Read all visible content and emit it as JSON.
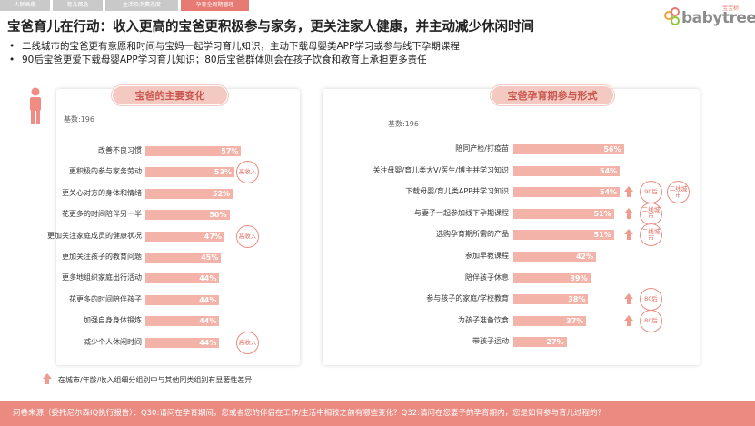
{
  "tabs": [
    "人群画像",
    "育儿观念",
    "生活及消费态度",
    "孕育全周期管理"
  ],
  "active_tab": 3,
  "title": "宝爸育儿在行动：收入更高的宝爸更积极参与家务，更关注家人健康，并主动减少休闲时间",
  "bullets": [
    "二线城市的宝爸更有意愿和时间与宝妈一起学习育儿知识，主动下载母婴类APP学习或参与线下孕期课程",
    "90后宝爸更爱下载母婴APP学习育儿知识；80后宝爸群体则会在孩子饮食和教育上承担更多责任"
  ],
  "bullet_mark": "•",
  "logo": {
    "text": "babytree",
    "cn": "宝宝树"
  },
  "colors": {
    "bar": "#f3b3a8",
    "accent": "#e77a72",
    "footer": "#eb8a80",
    "badge": "#e06b60",
    "arrow": "#f09a90"
  },
  "chart_data": [
    {
      "type": "bar",
      "title": "宝爸的主要变化",
      "base": "基数:196",
      "categories": [
        "改善不良习惯",
        "更积极的参与家务劳动",
        "更关心对方的身体和情绪",
        "花更多的时间陪伴另一半",
        "更加关注家庭成员的健康状况",
        "更加关注孩子的教育问题",
        "更多地组织家庭出行活动",
        "花更多的时间陪伴孩子",
        "加强自身身体锻炼",
        "减少个人休闲时间"
      ],
      "values": [
        57,
        53,
        52,
        50,
        47,
        45,
        44,
        44,
        44,
        44
      ],
      "value_labels": [
        "57%",
        "53%",
        "52%",
        "50%",
        "47%",
        "45%",
        "44%",
        "44%",
        "44%",
        "44%"
      ],
      "annotations": [
        {
          "index": 1,
          "arrow": true,
          "badges": [
            "高收入"
          ]
        },
        {
          "index": 4,
          "arrow": true,
          "badges": [
            "高收入"
          ]
        },
        {
          "index": 9,
          "arrow": true,
          "badges": [
            "高收入"
          ]
        }
      ]
    },
    {
      "type": "bar",
      "title": "宝爸孕育期参与形式",
      "base": "基数:196",
      "categories": [
        "陪同产检/打疫苗",
        "关注母婴/育儿类大V/医生/博主并学习知识",
        "下载母婴/育儿类APP并学习知识",
        "与妻子一起参加线下孕期课程",
        "选购孕育期所需的产品",
        "参加早教课程",
        "陪伴孩子休息",
        "参与孩子的家庭/学校教育",
        "为孩子准备饮食",
        "带孩子运动"
      ],
      "values": [
        56,
        54,
        54,
        51,
        51,
        42,
        39,
        38,
        37,
        27
      ],
      "value_labels": [
        "56%",
        "54%",
        "54%",
        "51%",
        "51%",
        "42%",
        "39%",
        "38%",
        "37%",
        "27%"
      ],
      "annotations": [
        {
          "index": 2,
          "arrow": true,
          "badges": [
            "90后",
            "二线城市"
          ]
        },
        {
          "index": 3,
          "arrow": true,
          "badges": [
            "二线城市"
          ]
        },
        {
          "index": 4,
          "arrow": true,
          "badges": [
            "二线城市"
          ]
        },
        {
          "index": 7,
          "arrow": true,
          "badges": [
            "80后"
          ]
        },
        {
          "index": 8,
          "arrow": true,
          "badges": [
            "80后"
          ]
        }
      ]
    }
  ],
  "note": "在城市/年龄/收入组细分组别中与其他同类组别有显著性差异",
  "footer": "问卷来源（委托尼尔森IQ执行报告）：Q30:请问在孕育期间，您或者您的伴侣在工作/生活中相较之前有哪些变化？Q32:请问在您妻子的孕育期内，您是如何参与育儿过程的？"
}
